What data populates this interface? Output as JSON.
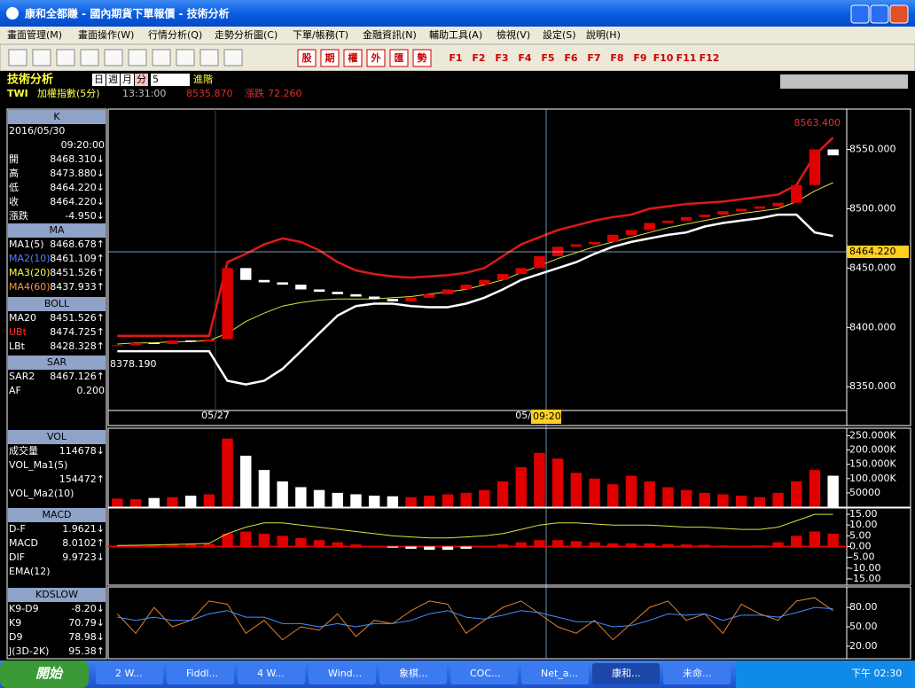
{
  "window": {
    "title": "康和全都賺 - 國內期貨下單報價 - 技術分析"
  },
  "menu": [
    "畫面管理(M)",
    "畫面操作(W)",
    "行情分析(Q)",
    "走勢分析圖(C)",
    "下單/帳務(T)",
    "金融資訊(N)",
    "輔助工具(A)",
    "檢視(V)",
    "設定(S)",
    "說明(H)"
  ],
  "toolbar": {
    "buttons": [
      "股",
      "期",
      "權",
      "外",
      "匯",
      "勢"
    ],
    "fkeys": [
      "F1",
      "F2",
      "F3",
      "F4",
      "F5",
      "F6",
      "F7",
      "F8",
      "F9",
      "F10",
      "F11",
      "F12"
    ]
  },
  "panel": {
    "title": "技術分析",
    "periods": [
      "日",
      "週",
      "月",
      "分"
    ],
    "period_value": "5",
    "advanced": "進階",
    "symbol": "TWI",
    "symbol_name": "加權指數(5分)",
    "time": "13:31:00",
    "price": "8535.870",
    "change_label": "漲跌",
    "change": "72.260"
  },
  "side": [
    {
      "header": "K",
      "rows": [
        {
          "label": "2016/05/30"
        },
        {
          "value": "09:20:00"
        },
        {
          "label": "開",
          "value": "8468.310↓"
        },
        {
          "label": "高",
          "value": "8473.880↓"
        },
        {
          "label": "低",
          "value": "8464.220↓"
        },
        {
          "label": "收",
          "value": "8464.220↓"
        },
        {
          "label": "漲跌",
          "value": "-4.950↓"
        }
      ]
    },
    {
      "header": "MA",
      "rows": [
        {
          "label": "MA1(5)",
          "value": "8468.678↑"
        },
        {
          "label": "MA2(10)",
          "value": "8461.109↑"
        },
        {
          "label": "MA3(20)",
          "value": "8451.526↑"
        },
        {
          "label": "MA4(60)",
          "value": "8437.933↑"
        }
      ]
    },
    {
      "header": "BOLL",
      "rows": [
        {
          "label": "MA20",
          "value": "8451.526↑"
        },
        {
          "label": "UBt",
          "value": "8474.725↑"
        },
        {
          "label": "LBt",
          "value": "8428.328↑"
        }
      ]
    },
    {
      "header": "SAR",
      "rows": [
        {
          "label": "SAR2",
          "value": "8467.126↑"
        },
        {
          "label": "AF",
          "value": "0.200"
        }
      ]
    },
    {
      "header": "VOL",
      "rows": [
        {
          "label": "成交量",
          "value": "114678↓"
        },
        {
          "label": "VOL_Ma1(5)"
        },
        {
          "value": "154472↑"
        },
        {
          "label": "VOL_Ma2(10)"
        }
      ]
    },
    {
      "header": "MACD",
      "rows": [
        {
          "label": "D-F",
          "value": "1.9621↓"
        },
        {
          "label": "MACD",
          "value": "8.0102↑"
        },
        {
          "label": "DIF",
          "value": "9.9723↓"
        },
        {
          "label": "EMA(12)"
        }
      ]
    },
    {
      "header": "KDSLOW",
      "rows": [
        {
          "label": "K9-D9",
          "value": "-8.20↓"
        },
        {
          "label": "K9",
          "value": "70.79↓"
        },
        {
          "label": "D9",
          "value": "78.98↓"
        },
        {
          "label": "J(3D-2K)",
          "value": "95.38↑"
        }
      ]
    }
  ],
  "chart_data": [
    {
      "type": "candlestick",
      "up_color": "#e00000",
      "down_color": "#ffffff",
      "max_label": "8563.400",
      "min_label": "8378.190",
      "crosshair_label": "8464.220",
      "x_labels": [
        "05/27",
        "05/"
      ],
      "cursor_time": "09:20",
      "close": [
        8385,
        8387,
        8386,
        8389,
        8388,
        8390,
        8450,
        8440,
        8438,
        8436,
        8432,
        8430,
        8428,
        8426,
        8424,
        8422,
        8425,
        8428,
        8432,
        8436,
        8440,
        8445,
        8450,
        8460,
        8468,
        8470,
        8472,
        8478,
        8482,
        8488,
        8490,
        8493,
        8495,
        8498,
        8500,
        8502,
        8505,
        8520,
        8550,
        8545
      ],
      "lines": [
        {
          "color": "#e01818",
          "values": [
            8393,
            8393,
            8393,
            8393,
            8393,
            8393,
            8455,
            8462,
            8470,
            8475,
            8472,
            8465,
            8455,
            8448,
            8445,
            8443,
            8442,
            8443,
            8444,
            8446,
            8450,
            8460,
            8470,
            8476,
            8482,
            8486,
            8490,
            8493,
            8495,
            8500,
            8502,
            8504,
            8505,
            8506,
            8508,
            8510,
            8512,
            8520,
            8545,
            8560
          ]
        },
        {
          "color": "#ffffff",
          "values": [
            8380,
            8380,
            8380,
            8380,
            8380,
            8380,
            8355,
            8352,
            8355,
            8365,
            8380,
            8395,
            8410,
            8418,
            8420,
            8420,
            8418,
            8417,
            8417,
            8420,
            8425,
            8432,
            8440,
            8445,
            8450,
            8455,
            8462,
            8468,
            8472,
            8475,
            8478,
            8480,
            8485,
            8488,
            8490,
            8492,
            8495,
            8495,
            8480,
            8477
          ]
        },
        {
          "color": "#e0e040",
          "values": [
            8386,
            8387,
            8387,
            8388,
            8388,
            8389,
            8395,
            8405,
            8412,
            8418,
            8421,
            8423,
            8424,
            8424,
            8424,
            8425,
            8426,
            8428,
            8430,
            8432,
            8436,
            8440,
            8446,
            8452,
            8458,
            8463,
            8468,
            8472,
            8476,
            8480,
            8484,
            8487,
            8490,
            8493,
            8496,
            8498,
            8500,
            8506,
            8515,
            8522
          ]
        }
      ],
      "ylim": [
        8330,
        8584
      ],
      "yticks": [
        {
          "value": 8350,
          "label": "8350.000"
        },
        {
          "value": 8400,
          "label": "8400.000"
        },
        {
          "value": 8450,
          "label": "8450.000"
        },
        {
          "value": 8500,
          "label": "8500.000"
        },
        {
          "value": 8550,
          "label": "8550.000"
        }
      ]
    },
    {
      "type": "bar",
      "values": [
        30000,
        28000,
        32000,
        35000,
        40000,
        45000,
        240000,
        180000,
        130000,
        90000,
        70000,
        60000,
        50000,
        45000,
        40000,
        38000,
        35000,
        40000,
        45000,
        50000,
        60000,
        90000,
        140000,
        190000,
        170000,
        120000,
        100000,
        80000,
        110000,
        90000,
        70000,
        60000,
        50000,
        45000,
        40000,
        35000,
        50000,
        90000,
        130000,
        110000
      ],
      "ylim": [
        0,
        270000
      ],
      "yticks": [
        50000,
        {
          "value": 100000,
          "label": "100.000K"
        },
        {
          "value": 150000,
          "label": "150.000K"
        },
        {
          "value": 200000,
          "label": "200.000K"
        },
        {
          "value": 250000,
          "label": "250.000K"
        }
      ]
    },
    {
      "type": "macd",
      "up_color": "#e00000",
      "down_color": "#ffffff",
      "line_color": "#e0e040",
      "values": [
        0.5,
        0.5,
        0.6,
        0.8,
        1,
        1.2,
        6,
        7,
        6,
        5,
        4,
        3,
        2,
        1,
        0,
        -0.5,
        -1,
        -1.5,
        -1.5,
        -1,
        0,
        1,
        2,
        3,
        3,
        2.5,
        2,
        1.5,
        1.5,
        1.5,
        1.2,
        1,
        0.8,
        0.5,
        0.3,
        0.5,
        2,
        5,
        7,
        6
      ],
      "dif": [
        0.5,
        0.6,
        0.8,
        1,
        1.2,
        1.5,
        6,
        9,
        11,
        11,
        10,
        9,
        8,
        7,
        6,
        5,
        4.5,
        4,
        4,
        4.5,
        5,
        6,
        8,
        10,
        11,
        11,
        10.5,
        10,
        10,
        10,
        9.5,
        9,
        9,
        8.5,
        8,
        8,
        9,
        12,
        15,
        15
      ],
      "ylim": [
        -17.5,
        17.5
      ],
      "yticks": [
        {
          "value": -15,
          "label": "-15.00"
        },
        {
          "value": -10,
          "label": "-10.00"
        },
        {
          "value": -5,
          "label": "-5.00"
        },
        {
          "value": 0,
          "label": "0.00"
        },
        {
          "value": 5,
          "label": "5.00"
        },
        {
          "value": 10,
          "label": "10.00"
        },
        {
          "value": 15,
          "label": "15.00"
        }
      ]
    },
    {
      "type": "line",
      "series": [
        {
          "color": "#e08030",
          "values": [
            70,
            40,
            80,
            50,
            60,
            90,
            85,
            40,
            60,
            30,
            50,
            45,
            70,
            35,
            60,
            55,
            75,
            90,
            85,
            40,
            60,
            80,
            90,
            70,
            50,
            40,
            60,
            30,
            55,
            80,
            90,
            60,
            70,
            40,
            85,
            70,
            60,
            90,
            95,
            75
          ]
        },
        {
          "color": "#4090ff",
          "values": [
            65,
            60,
            65,
            60,
            60,
            70,
            75,
            65,
            65,
            55,
            55,
            50,
            55,
            50,
            55,
            55,
            60,
            70,
            75,
            65,
            62,
            68,
            75,
            72,
            65,
            58,
            58,
            50,
            52,
            60,
            70,
            68,
            70,
            60,
            68,
            68,
            65,
            72,
            80,
            78
          ]
        }
      ],
      "ylim": [
        2,
        109
      ],
      "yticks": [
        {
          "value": 20,
          "label": "20.00"
        },
        {
          "value": 50,
          "label": "50.00"
        },
        {
          "value": 80,
          "label": "80.00"
        }
      ]
    }
  ],
  "taskbar": {
    "start": "開始",
    "items": [
      "2 W...",
      "Fiddl...",
      "4 W...",
      "Wind...",
      "象棋...",
      "COC...",
      "Net_a...",
      "康和...",
      "未命..."
    ],
    "clock": "下午 02:30"
  }
}
